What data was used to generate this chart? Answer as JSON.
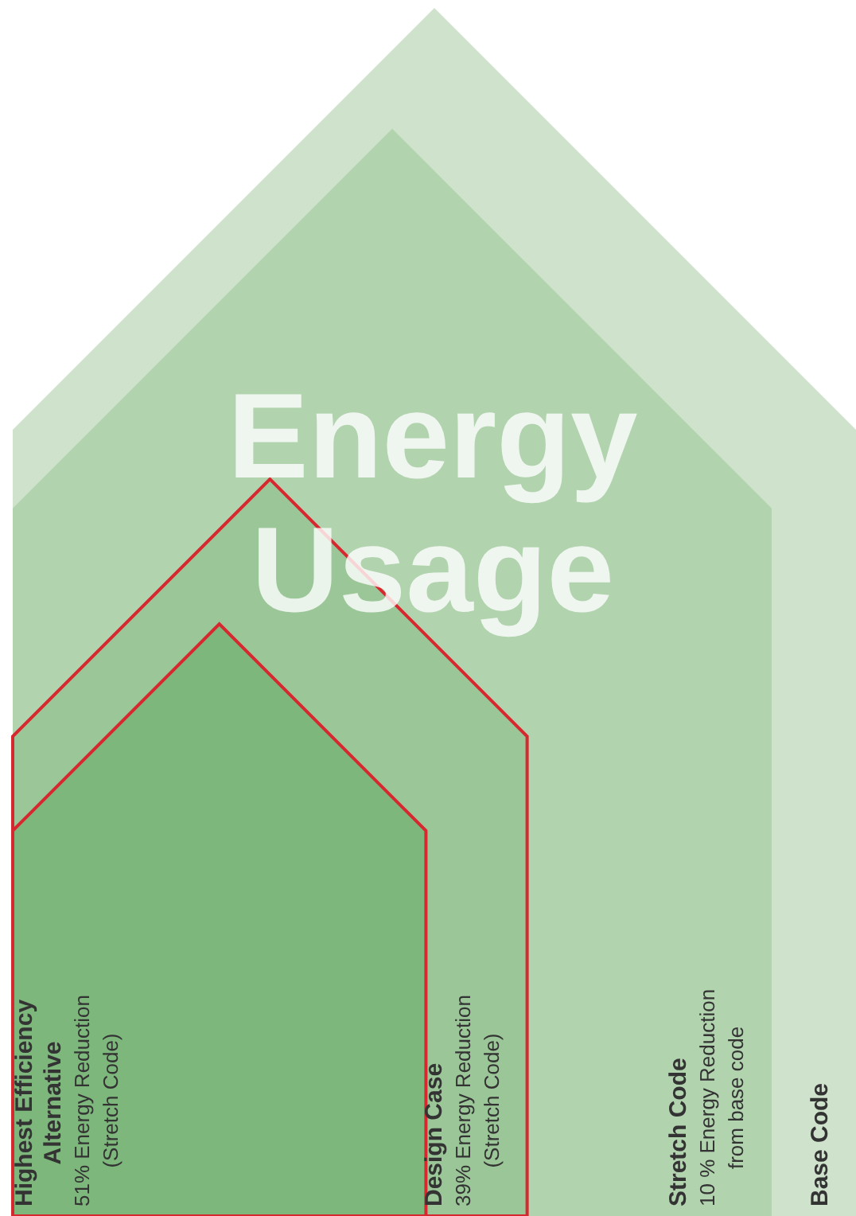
{
  "chart_data": {
    "type": "other",
    "title": "Energy Usage",
    "categories": [
      "Highest Efficiency Alternative",
      "Design Case",
      "Stretch Code",
      "Base Code"
    ],
    "values": [
      51,
      39,
      10,
      null
    ],
    "value_labels": [
      "51% Energy Reduction (Stretch Code)",
      "39% Energy Reduction (Stretch Code)",
      "10 % Energy Reduction from base code",
      null
    ],
    "colors": [
      "#7db77c",
      "#9bc798",
      "#b1d3ae",
      "#cfe3cc"
    ]
  }
}
